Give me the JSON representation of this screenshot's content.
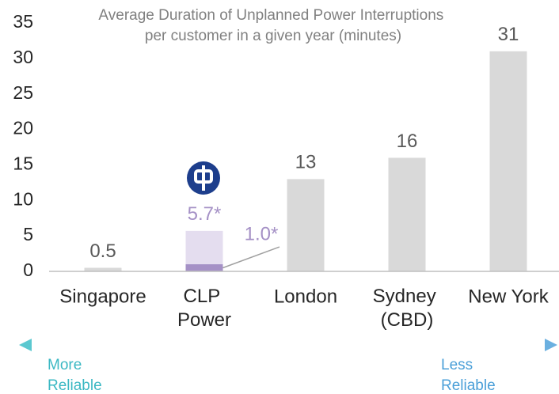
{
  "chart_data": {
    "type": "bar",
    "title": "Average Duration of Unplanned Power Interruptions\nper customer in a given year (minutes)",
    "categories": [
      "Singapore",
      "CLP\nPower",
      "London",
      "Sydney\n(CBD)",
      "New York"
    ],
    "values": [
      0.5,
      5.7,
      13,
      16,
      31
    ],
    "value_labels": [
      "0.5",
      "5.7*",
      "13",
      "16",
      "31"
    ],
    "colors": [
      "#d9d9d9",
      "#e4ddef",
      "#d9d9d9",
      "#d9d9d9",
      "#d9d9d9"
    ],
    "value_label_colors": [
      "#595959",
      "#a591c6",
      "#595959",
      "#595959",
      "#595959"
    ],
    "inner": {
      "values": [
        null,
        1.0,
        null,
        null,
        null
      ],
      "value_labels": [
        null,
        "1.0*",
        null,
        null,
        null
      ],
      "color": "#a591c6"
    },
    "ylim": [
      0,
      35
    ],
    "yticks": [
      0,
      5,
      10,
      15,
      20,
      25,
      30,
      35
    ],
    "grid": false,
    "annotations": {
      "left": "More\nReliable",
      "left_color": "#3bb8c3",
      "right": "Less\nReliable",
      "right_color": "#4a9fd8"
    }
  }
}
